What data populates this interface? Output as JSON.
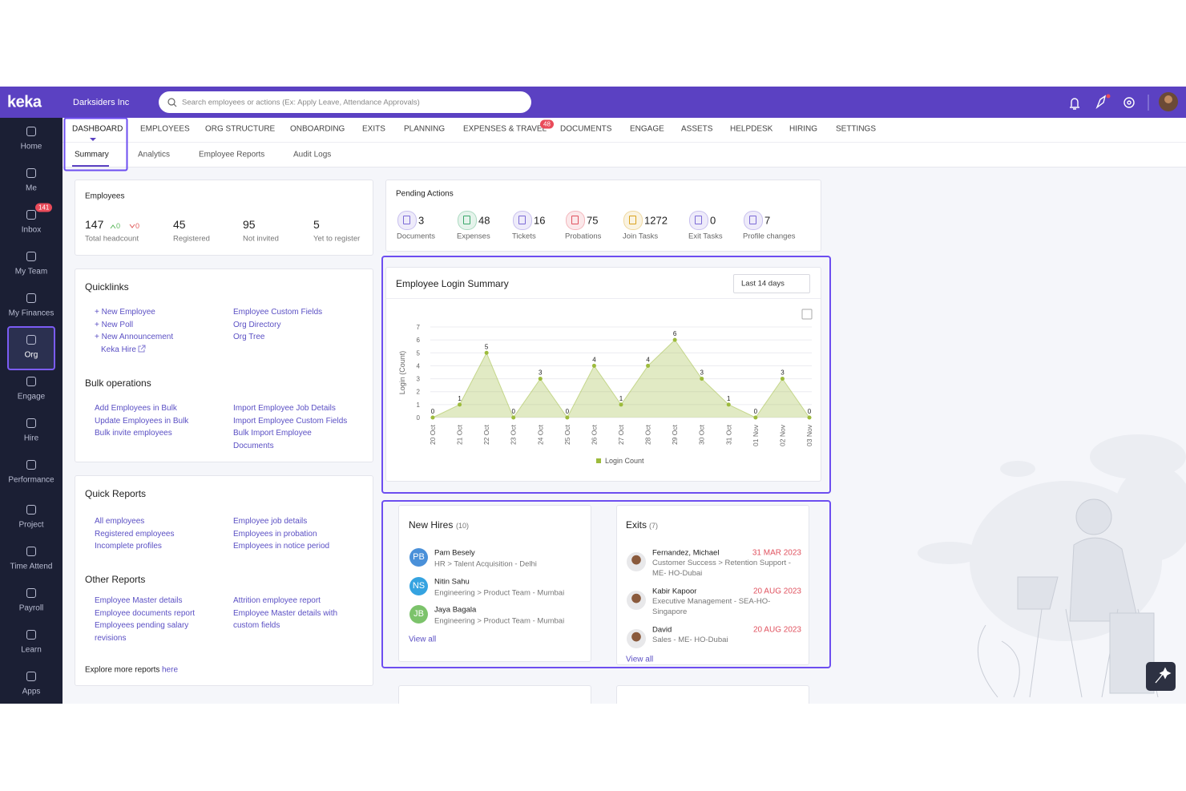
{
  "header": {
    "logo": "keka",
    "company": "Darksiders Inc",
    "search_placeholder": "Search employees or actions (Ex: Apply Leave, Attendance Approvals)"
  },
  "sidebar": [
    {
      "label": "Home"
    },
    {
      "label": "Me"
    },
    {
      "label": "Inbox",
      "badge": 141
    },
    {
      "label": "My Team"
    },
    {
      "label": "My Finances"
    },
    {
      "label": "Org"
    },
    {
      "label": "Engage"
    },
    {
      "label": "Hire"
    },
    {
      "label": "Performance"
    },
    {
      "label": "Project"
    },
    {
      "label": "Time Attend"
    },
    {
      "label": "Payroll"
    },
    {
      "label": "Learn"
    },
    {
      "label": "Apps"
    }
  ],
  "tabs": [
    {
      "label": "DASHBOARD"
    },
    {
      "label": "EMPLOYEES"
    },
    {
      "label": "ORG STRUCTURE"
    },
    {
      "label": "ONBOARDING"
    },
    {
      "label": "EXITS"
    },
    {
      "label": "PLANNING"
    },
    {
      "label": "EXPENSES & TRAVEL",
      "badge": 48
    },
    {
      "label": "DOCUMENTS"
    },
    {
      "label": "ENGAGE"
    },
    {
      "label": "ASSETS"
    },
    {
      "label": "HELPDESK"
    },
    {
      "label": "HIRING"
    },
    {
      "label": "SETTINGS"
    }
  ],
  "subtabs": [
    "Summary",
    "Analytics",
    "Employee Reports",
    "Audit Logs"
  ],
  "employees": {
    "title": "Employees",
    "headcount": 147,
    "up": 0,
    "down": 0,
    "headcount_label": "Total headcount",
    "stats": [
      {
        "value": 45,
        "label": "Registered"
      },
      {
        "value": 95,
        "label": "Not invited"
      },
      {
        "value": 5,
        "label": "Yet to register"
      }
    ]
  },
  "quicklinks": {
    "title": "Quicklinks",
    "left": [
      "+ New Employee",
      "+ New Poll",
      "+ New Announcement",
      "Keka Hire"
    ],
    "right": [
      "Employee Custom Fields",
      "Org Directory",
      "Org Tree"
    ]
  },
  "bulk_operations": {
    "title": "Bulk operations",
    "left": [
      "Add Employees in Bulk",
      "Update Employees in Bulk",
      "Bulk invite employees"
    ],
    "right": [
      "Import Employee Job Details",
      "Import Employee Custom Fields",
      "Bulk Import Employee Documents"
    ]
  },
  "quick_reports": {
    "title": "Quick Reports",
    "left": [
      "All employees",
      "Registered employees",
      "Incomplete profiles"
    ],
    "right": [
      "Employee job details",
      "Employees in probation",
      "Employees in notice period"
    ]
  },
  "other_reports": {
    "title": "Other Reports",
    "left": [
      "Employee Master details",
      "Employee documents report",
      "Employees pending salary revisions"
    ],
    "right": [
      "Attrition employee report",
      "Employee Master details with custom fields"
    ]
  },
  "explore": {
    "text": "Explore more reports",
    "link": "here"
  },
  "pending_actions": {
    "title": "Pending Actions",
    "items": [
      {
        "value": 3,
        "label": "Documents",
        "color": "#7c6ad6"
      },
      {
        "value": 48,
        "label": "Expenses",
        "color": "#3aa86b"
      },
      {
        "value": 16,
        "label": "Tickets",
        "color": "#7c6ad6"
      },
      {
        "value": 75,
        "label": "Probations",
        "color": "#e0525f"
      },
      {
        "value": 1272,
        "label": "Join Tasks",
        "color": "#d9a21c"
      },
      {
        "value": 0,
        "label": "Exit Tasks",
        "color": "#7c6ad6"
      },
      {
        "value": 7,
        "label": "Profile changes",
        "color": "#7c6ad6"
      }
    ]
  },
  "chart_data": {
    "type": "area",
    "title": "Employee Login Summary",
    "range_selector": "Last 14 days",
    "y_label": "Login (Count)",
    "categories": [
      "20 Oct",
      "21 Oct",
      "22 Oct",
      "23 Oct",
      "24 Oct",
      "25 Oct",
      "26 Oct",
      "27 Oct",
      "28 Oct",
      "29 Oct",
      "30 Oct",
      "31 Oct",
      "01 Nov",
      "02 Nov",
      "03 Nov"
    ],
    "series": [
      {
        "name": "Login Count",
        "color": "#9dbb3c",
        "values": [
          0,
          1,
          5,
          0,
          3,
          0,
          4,
          1,
          4,
          6,
          3,
          1,
          0,
          3,
          0
        ]
      }
    ],
    "ylim": [
      0,
      7
    ],
    "yticks": [
      0,
      1,
      2,
      3,
      4,
      5,
      6,
      7
    ],
    "grid": true
  },
  "new_hires": {
    "title": "New Hires",
    "count": "(10)",
    "people": [
      {
        "initials": "PB",
        "color": "#4a90d9",
        "name": "Pam Besely",
        "detail": "HR > Talent Acquisition - Delhi"
      },
      {
        "initials": "NS",
        "color": "#35a3e0",
        "name": "Nitin Sahu",
        "detail": "Engineering > Product Team - Mumbai"
      },
      {
        "initials": "JB",
        "color": "#7cc36b",
        "name": "Jaya Bagala",
        "detail": "Engineering > Product Team - Mumbai"
      }
    ],
    "view_all": "View all"
  },
  "exits": {
    "title": "Exits",
    "count": "(7)",
    "people": [
      {
        "name": "Fernandez, Michael",
        "date": "31 MAR 2023",
        "detail": "Customer Success > Retention Support - ME- HO-Dubai"
      },
      {
        "name": "Kabir Kapoor",
        "date": "20 AUG 2023",
        "detail": "Executive Management - SEA-HO-Singapore"
      },
      {
        "name": "David",
        "date": "20 AUG 2023",
        "detail": "Sales - ME- HO-Dubai"
      }
    ],
    "view_all": "View all"
  }
}
